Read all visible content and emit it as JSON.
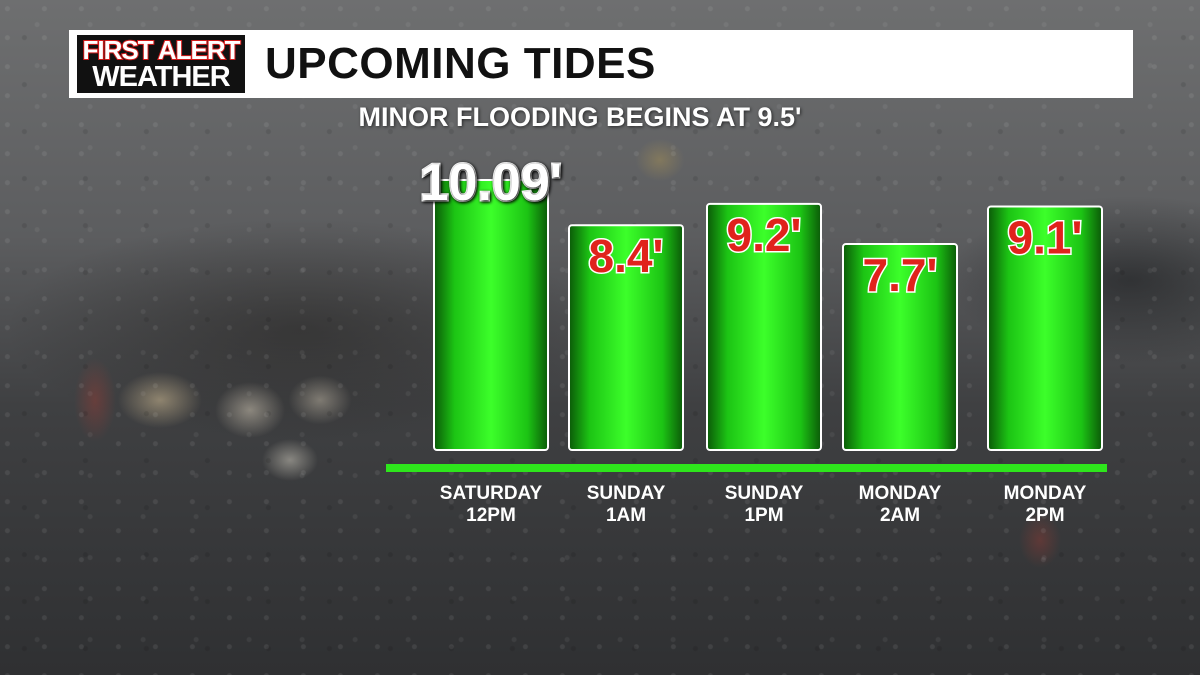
{
  "header": {
    "logo_line1": "FIRST ALERT",
    "logo_line2": "WEATHER",
    "title": "UPCOMING TIDES"
  },
  "colors": {
    "bar_green": "#22e01a",
    "baseline_green": "#2ee61c",
    "value_red": "#e0221c",
    "value_white": "#ffffff"
  },
  "chart_data": {
    "type": "bar",
    "title": "UPCOMING TIDES",
    "subtitle": "MINOR FLOODING BEGINS AT 9.5'",
    "unit": "ft",
    "categories": [
      [
        "SATURDAY",
        "12PM"
      ],
      [
        "SUNDAY",
        "1AM"
      ],
      [
        "SUNDAY",
        "1PM"
      ],
      [
        "MONDAY",
        "2AM"
      ],
      [
        "MONDAY",
        "2PM"
      ]
    ],
    "values": [
      10.09,
      8.4,
      9.2,
      7.7,
      9.1
    ],
    "value_labels": [
      "10.09'",
      "8.4'",
      "9.2'",
      "7.7'",
      "9.1'"
    ],
    "value_label_colors": [
      "#ffffff",
      "#e0221c",
      "#e0221c",
      "#e0221c",
      "#e0221c"
    ],
    "flood_threshold": 9.5
  }
}
